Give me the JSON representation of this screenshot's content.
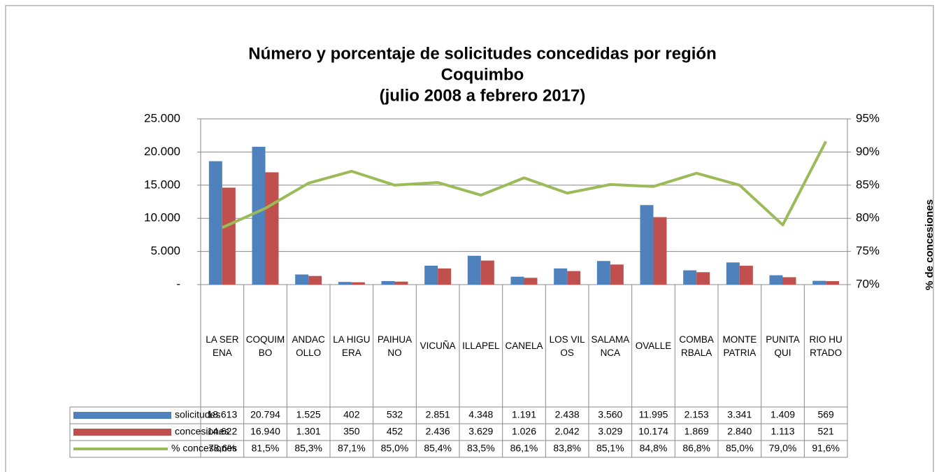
{
  "chart_data": {
    "type": "bar",
    "title": [
      "Número y porcentaje de solicitudes concedidas por región",
      "Coquimbo",
      "(julio 2008 a febrero 2017)"
    ],
    "categories": [
      "LA SERENA",
      "COQUIMBO",
      "ANDACOLLO",
      "LA HIGUERA",
      "PAIHUANO",
      "VICUÑA",
      "ILLAPEL",
      "CANELA",
      "LOS VILOS",
      "SALAMANCA",
      "OVALLE",
      "COMBARBALA",
      "MONTE PATRIA",
      "PUNITAQUI",
      "RIO HURTADO"
    ],
    "series": [
      {
        "name": "solicitudes",
        "type": "bar",
        "color": "#4f81bd",
        "values": [
          18613,
          20794,
          1525,
          402,
          532,
          2851,
          4348,
          1191,
          2438,
          3560,
          11995,
          2153,
          3341,
          1409,
          569
        ],
        "value_labels": [
          "18.613",
          "20.794",
          "1.525",
          "402",
          "532",
          "2.851",
          "4.348",
          "1.191",
          "2.438",
          "3.560",
          "11.995",
          "2.153",
          "3.341",
          "1.409",
          "569"
        ]
      },
      {
        "name": "concesiones",
        "type": "bar",
        "color": "#c0504d",
        "values": [
          14622,
          16940,
          1301,
          350,
          452,
          2436,
          3629,
          1026,
          2042,
          3029,
          10174,
          1869,
          2840,
          1113,
          521
        ],
        "value_labels": [
          "14.622",
          "16.940",
          "1.301",
          "350",
          "452",
          "2.436",
          "3.629",
          "1.026",
          "2.042",
          "3.029",
          "10.174",
          "1.869",
          "2.840",
          "1.113",
          "521"
        ]
      },
      {
        "name": "% concesiones",
        "type": "line",
        "axis": "y2",
        "color": "#9bbb59",
        "values": [
          78.6,
          81.5,
          85.3,
          87.1,
          85.0,
          85.4,
          83.5,
          86.1,
          83.8,
          85.1,
          84.8,
          86.8,
          85.0,
          79.0,
          91.6
        ],
        "value_labels": [
          "78,6%",
          "81,5%",
          "85,3%",
          "87,1%",
          "85,0%",
          "85,4%",
          "83,5%",
          "86,1%",
          "83,8%",
          "85,1%",
          "84,8%",
          "86,8%",
          "85,0%",
          "79,0%",
          "91,6%"
        ]
      }
    ],
    "ylim": [
      0,
      25000
    ],
    "yticks": [
      {
        "value": 0,
        "label": "-"
      },
      {
        "value": 5000,
        "label": "5.000"
      },
      {
        "value": 10000,
        "label": "10.000"
      },
      {
        "value": 15000,
        "label": "15.000"
      },
      {
        "value": 20000,
        "label": "20.000"
      },
      {
        "value": 25000,
        "label": "25.000"
      }
    ],
    "y2lim": [
      70,
      95
    ],
    "y2ticks": [
      {
        "value": 70,
        "label": "70%"
      },
      {
        "value": 75,
        "label": "75%"
      },
      {
        "value": 80,
        "label": "80%"
      },
      {
        "value": 85,
        "label": "85%"
      },
      {
        "value": 90,
        "label": "90%"
      },
      {
        "value": 95,
        "label": "95%"
      }
    ],
    "y2label": "% de concesiones",
    "grid": true
  }
}
